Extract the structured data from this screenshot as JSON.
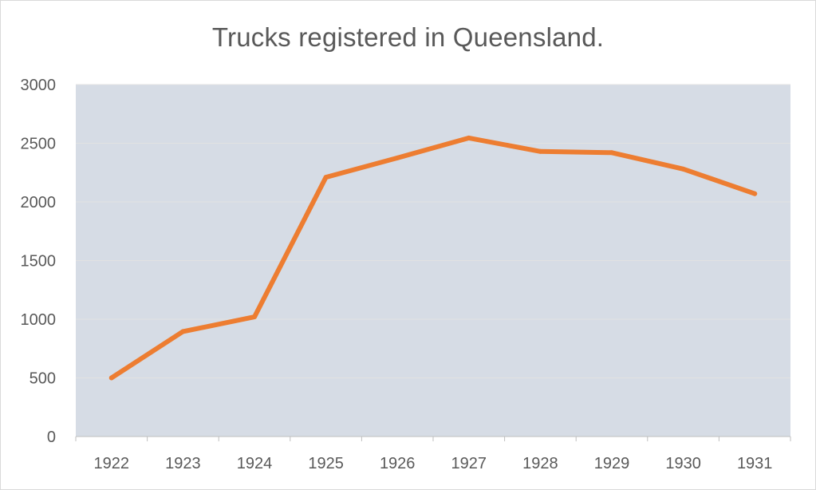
{
  "chart_data": {
    "type": "line",
    "title": "Trucks registered in Queensland.",
    "xlabel": "",
    "ylabel": "",
    "categories": [
      "1922",
      "1923",
      "1924",
      "1925",
      "1926",
      "1927",
      "1928",
      "1929",
      "1930",
      "1931"
    ],
    "series": [
      {
        "values": [
          500,
          895,
          1020,
          2210,
          2375,
          2545,
          2430,
          2420,
          2280,
          2070
        ],
        "color": "#ED7D31"
      }
    ],
    "ylim": [
      0,
      3000
    ],
    "yticks": [
      0,
      500,
      1000,
      1500,
      2000,
      2500,
      3000
    ],
    "grid": true,
    "plot_background": "#D6DCE5",
    "gridline_color": "#E2E2E2",
    "axis_color": "#BFBFBF",
    "legend": "none"
  }
}
